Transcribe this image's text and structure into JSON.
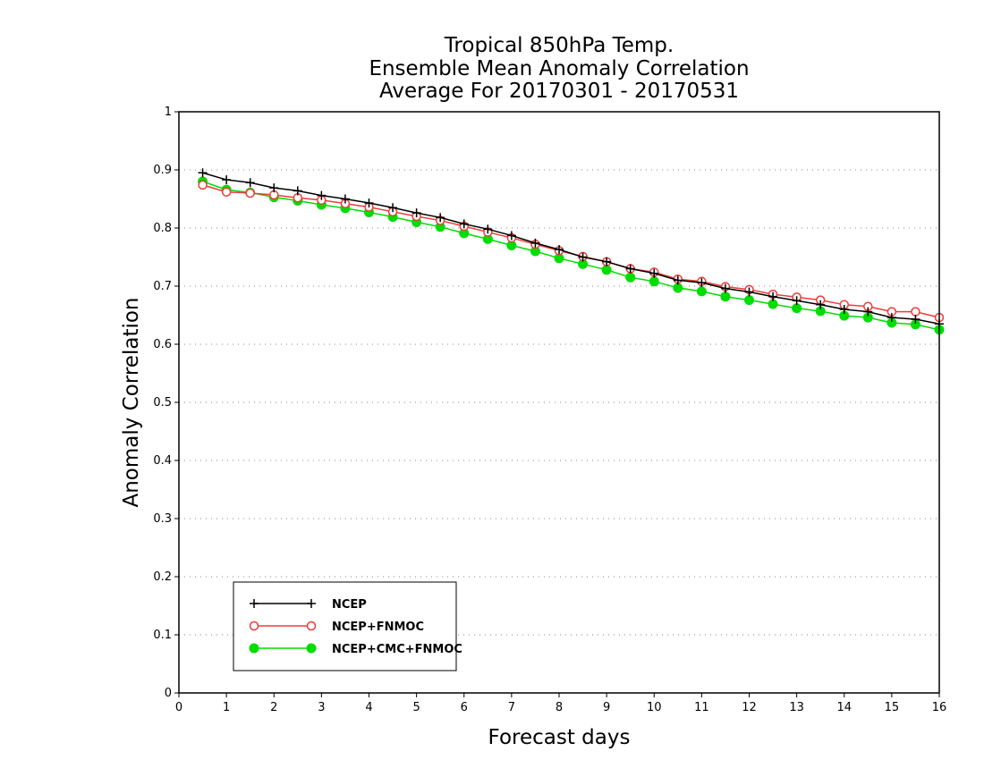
{
  "chart_data": {
    "type": "line",
    "title": [
      "Tropical 850hPa Temp.",
      "Ensemble Mean Anomaly Correlation",
      "Average For 20170301 - 20170531"
    ],
    "xlabel": "Forecast days",
    "ylabel": "Anomaly Correlation",
    "xlim": [
      0,
      16
    ],
    "ylim": [
      0,
      1
    ],
    "xticks": [
      "0",
      "1",
      "2",
      "3",
      "4",
      "5",
      "6",
      "7",
      "8",
      "9",
      "10",
      "11",
      "12",
      "13",
      "14",
      "15",
      "16"
    ],
    "yticks": [
      "0",
      "0.1",
      "0.2",
      "0.3",
      "0.4",
      "0.5",
      "0.6",
      "0.7",
      "0.8",
      "0.9",
      "1"
    ],
    "grid": "horizontal dotted",
    "legend_position": "bottom-left",
    "x": [
      0.5,
      1,
      1.5,
      2,
      2.5,
      3,
      3.5,
      4,
      4.5,
      5,
      5.5,
      6,
      6.5,
      7,
      7.5,
      8,
      8.5,
      9,
      9.5,
      10,
      10.5,
      11,
      11.5,
      12,
      12.5,
      13,
      13.5,
      14,
      14.5,
      15,
      15.5,
      16
    ],
    "series": [
      {
        "name": "NCEP",
        "color": "#000000",
        "marker": "plus",
        "values": [
          0.895,
          0.883,
          0.878,
          0.869,
          0.864,
          0.856,
          0.85,
          0.843,
          0.835,
          0.826,
          0.818,
          0.807,
          0.798,
          0.787,
          0.774,
          0.763,
          0.75,
          0.742,
          0.73,
          0.722,
          0.71,
          0.706,
          0.696,
          0.69,
          0.682,
          0.675,
          0.668,
          0.66,
          0.656,
          0.646,
          0.643,
          0.635
        ]
      },
      {
        "name": "NCEP+FNMOC",
        "color": "#ee3b3b",
        "marker": "open-circle",
        "values": [
          0.874,
          0.862,
          0.86,
          0.857,
          0.852,
          0.848,
          0.842,
          0.836,
          0.828,
          0.82,
          0.813,
          0.803,
          0.793,
          0.783,
          0.772,
          0.761,
          0.751,
          0.742,
          0.73,
          0.724,
          0.712,
          0.708,
          0.699,
          0.694,
          0.686,
          0.681,
          0.676,
          0.668,
          0.665,
          0.656,
          0.656,
          0.646
        ]
      },
      {
        "name": "NCEP+CMC+FNMOC",
        "color": "#00dd00",
        "marker": "filled-circle",
        "values": [
          0.88,
          0.866,
          0.861,
          0.853,
          0.847,
          0.84,
          0.834,
          0.827,
          0.819,
          0.81,
          0.802,
          0.791,
          0.781,
          0.77,
          0.76,
          0.748,
          0.738,
          0.728,
          0.715,
          0.708,
          0.697,
          0.691,
          0.682,
          0.676,
          0.669,
          0.662,
          0.657,
          0.649,
          0.646,
          0.637,
          0.634,
          0.625
        ]
      }
    ]
  }
}
